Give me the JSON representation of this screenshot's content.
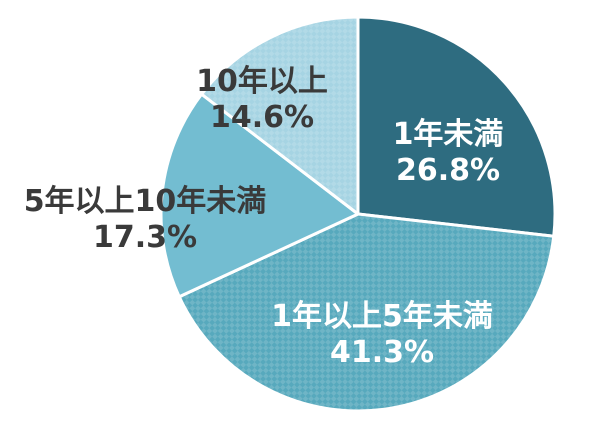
{
  "chart_data": {
    "type": "pie",
    "title": "",
    "start_angle_deg": 0,
    "direction": "clockwise",
    "slices": [
      {
        "label": "1年未満",
        "value": 26.8,
        "value_text": "26.8%",
        "color": "#2e6c80",
        "text_color": "#ffffff",
        "pattern": "none"
      },
      {
        "label": "1年以上5年未満",
        "value": 41.3,
        "value_text": "41.3%",
        "color": "#57a9bd",
        "text_color": "#ffffff",
        "pattern": "checker"
      },
      {
        "label": "5年以上10年未満",
        "value": 17.3,
        "value_text": "17.3%",
        "color": "#73bdd1",
        "text_color": "#3a3a3a",
        "pattern": "none"
      },
      {
        "label": "10年以上",
        "value": 14.6,
        "value_text": "14.6%",
        "color": "#a6d4e3",
        "text_color": "#3a3a3a",
        "pattern": "checker"
      }
    ]
  }
}
